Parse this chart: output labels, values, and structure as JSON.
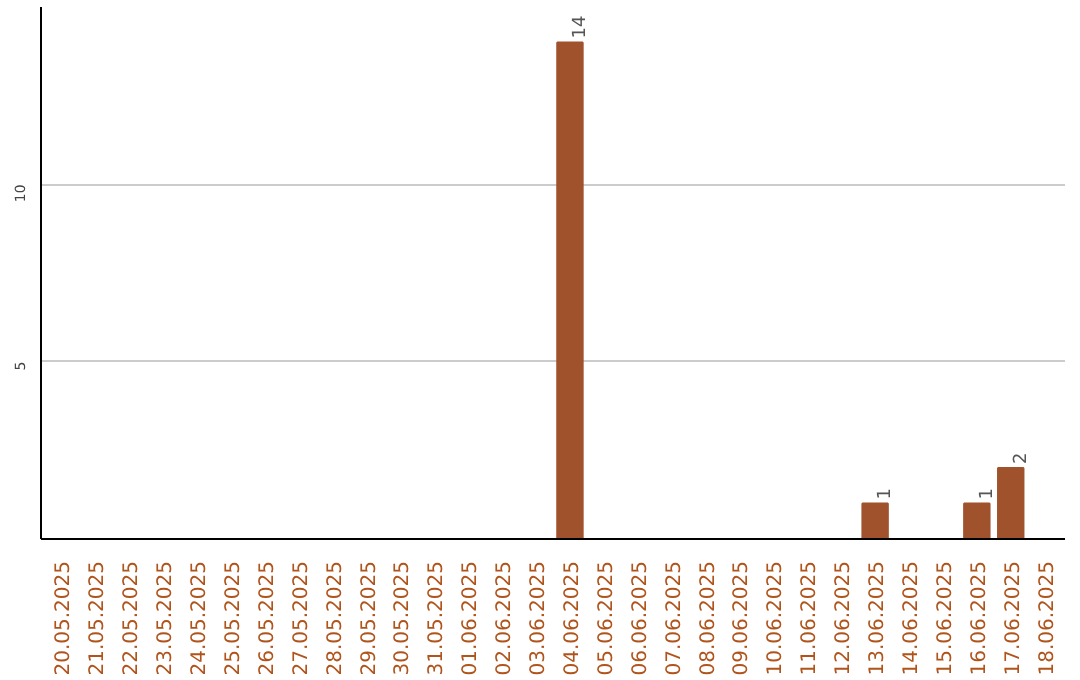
{
  "chart_data": {
    "type": "bar",
    "categories": [
      "20.05.2025",
      "21.05.2025",
      "22.05.2025",
      "23.05.2025",
      "24.05.2025",
      "25.05.2025",
      "26.05.2025",
      "27.05.2025",
      "28.05.2025",
      "29.05.2025",
      "30.05.2025",
      "31.05.2025",
      "01.06.2025",
      "02.06.2025",
      "03.06.2025",
      "04.06.2025",
      "05.06.2025",
      "06.06.2025",
      "07.06.2025",
      "08.06.2025",
      "09.06.2025",
      "10.06.2025",
      "11.06.2025",
      "12.06.2025",
      "13.06.2025",
      "14.06.2025",
      "15.06.2025",
      "16.06.2025",
      "17.06.2025",
      "18.06.2025"
    ],
    "values": [
      0,
      0,
      0,
      0,
      0,
      0,
      0,
      0,
      0,
      0,
      0,
      0,
      0,
      0,
      0,
      14,
      0,
      0,
      0,
      0,
      0,
      0,
      0,
      0,
      1,
      0,
      0,
      1,
      2,
      0
    ],
    "value_labels": [
      null,
      null,
      null,
      null,
      null,
      null,
      null,
      null,
      null,
      null,
      null,
      null,
      null,
      null,
      null,
      "14",
      null,
      null,
      null,
      null,
      null,
      null,
      null,
      null,
      "1",
      null,
      null,
      "1",
      "2",
      null
    ],
    "color": "#a0522d",
    "ylim": [
      0,
      15
    ],
    "yticks": [
      5,
      10
    ],
    "grid": "y"
  }
}
